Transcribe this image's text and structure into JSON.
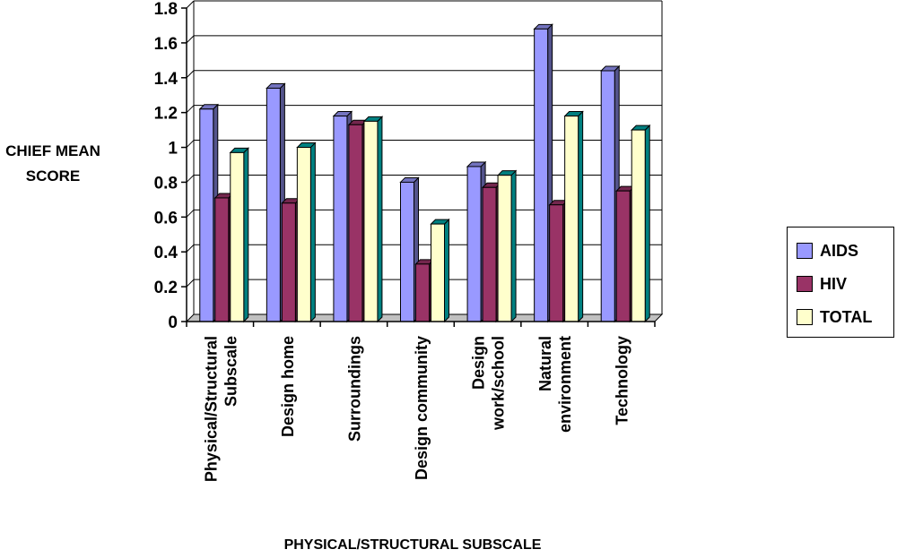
{
  "chart_data": {
    "type": "bar",
    "title": "",
    "xlabel": "PHYSICAL/STRUCTURAL SUBSCALE",
    "ylabel_lines": [
      "CHIEF MEAN",
      "SCORE"
    ],
    "ylim": [
      0,
      1.8
    ],
    "yticks": [
      "0",
      "0.2",
      "0.4",
      "0.6",
      "0.8",
      "1",
      "1.2",
      "1.4",
      "1.6",
      "1.8"
    ],
    "categories": [
      [
        "Physical/Structural",
        "Subscale"
      ],
      [
        "Design home"
      ],
      [
        "Surroundings"
      ],
      [
        "Design community"
      ],
      [
        "Design",
        "work/school"
      ],
      [
        "Natural",
        "environment"
      ],
      [
        "Technology"
      ]
    ],
    "series": [
      {
        "name": "AIDS",
        "color": "#9999ff",
        "values": [
          1.22,
          1.34,
          1.18,
          0.8,
          0.89,
          1.68,
          1.44
        ]
      },
      {
        "name": "HIV",
        "color": "#993366",
        "values": [
          0.71,
          0.68,
          1.13,
          0.33,
          0.77,
          0.67,
          0.75
        ]
      },
      {
        "name": "TOTAL",
        "color": "#ffffcc",
        "values": [
          0.97,
          1.0,
          1.15,
          0.56,
          0.84,
          1.18,
          1.1
        ]
      }
    ],
    "grid": true,
    "legend_position": "right"
  }
}
